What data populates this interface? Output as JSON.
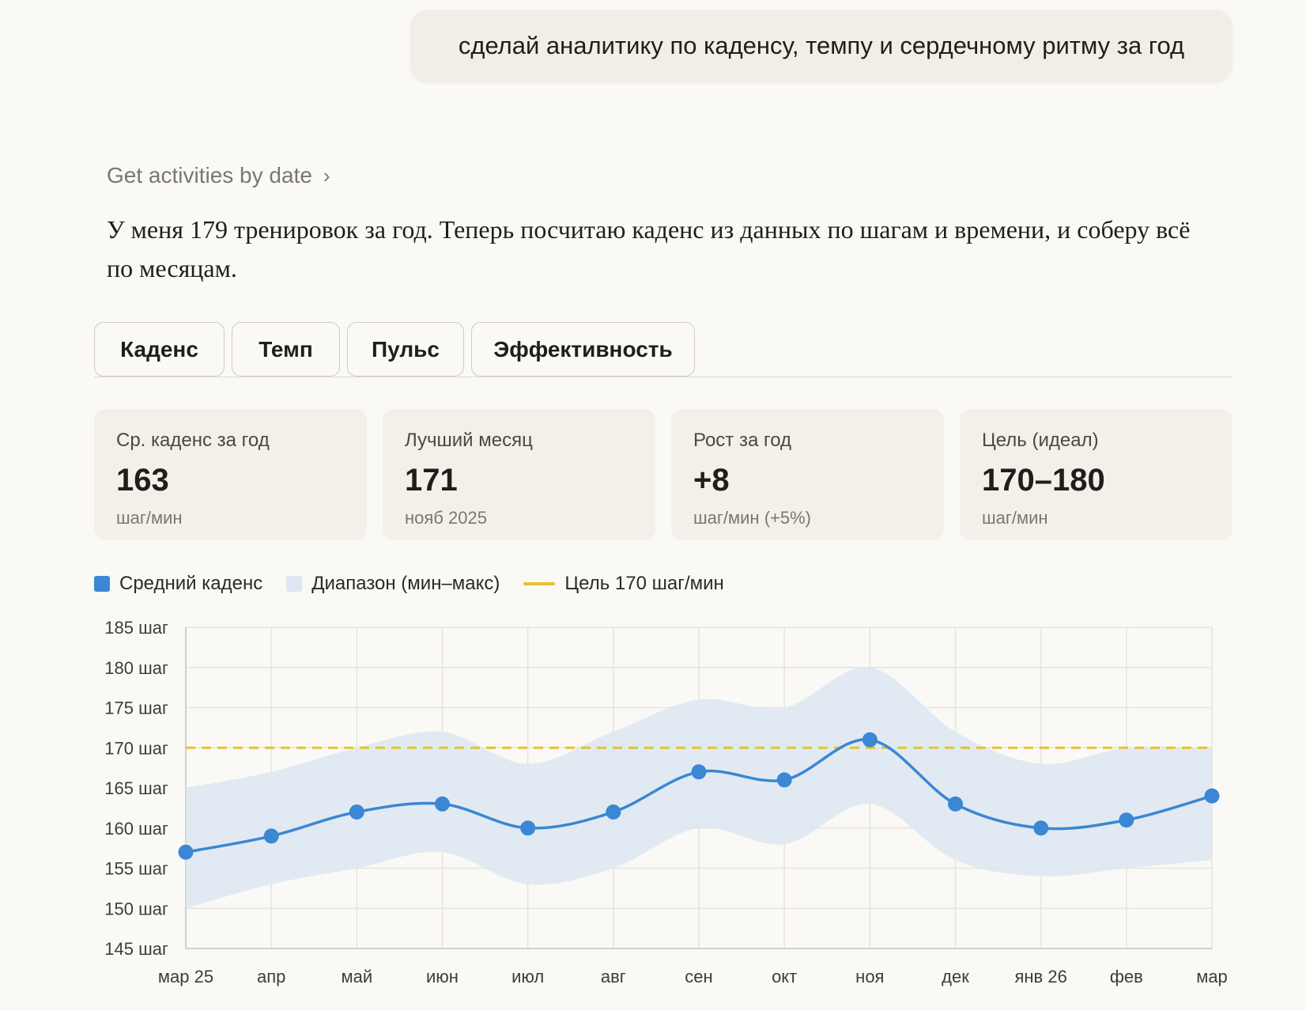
{
  "user_message": "сделай аналитику по каденсу, темпу и сердечному ритму за год",
  "tool_call": {
    "label": "Get activities by date",
    "chevron": "›"
  },
  "assistant_text": "У меня 179 тренировок за год. Теперь посчитаю каденс из данных по шагам и времени, и соберу всё по месяцам.",
  "tabs": [
    {
      "label": "Каденс"
    },
    {
      "label": "Темп"
    },
    {
      "label": "Пульс"
    },
    {
      "label": "Эффективность"
    }
  ],
  "stats": [
    {
      "label": "Ср. каденс за год",
      "value": "163",
      "sub": "шаг/мин"
    },
    {
      "label": "Лучший месяц",
      "value": "171",
      "sub": "нояб 2025"
    },
    {
      "label": "Рост за год",
      "value": "+8",
      "sub": "шаг/мин (+5%)"
    },
    {
      "label": "Цель (идеал)",
      "value": "170–180",
      "sub": "шаг/мин"
    }
  ],
  "legend": {
    "avg": "Средний каденс",
    "range": "Диапазон (мин–макс)",
    "goal": "Цель 170 шаг/мин"
  },
  "colors": {
    "line": "#3a87d4",
    "band": "#dce7f2",
    "goal": "#e8c22e"
  },
  "chart_data": {
    "type": "line",
    "categories": [
      "мар 25",
      "апр",
      "май",
      "июн",
      "июл",
      "авг",
      "сен",
      "окт",
      "ноя",
      "дек",
      "янв 26",
      "фев",
      "мар"
    ],
    "series": [
      {
        "name": "Средний каденс",
        "values": [
          157,
          159,
          162,
          163,
          160,
          162,
          167,
          166,
          171,
          163,
          160,
          161,
          164
        ]
      },
      {
        "name": "Диапазон (мин–макс)",
        "min": [
          150,
          153,
          155,
          157,
          153,
          155,
          160,
          158,
          163,
          156,
          154,
          155,
          156
        ],
        "max": [
          165,
          167,
          170,
          172,
          168,
          172,
          176,
          175,
          180,
          172,
          168,
          170,
          170
        ]
      }
    ],
    "goal": 170,
    "ylim": [
      145,
      185
    ],
    "yticks": [
      145,
      150,
      155,
      160,
      165,
      170,
      175,
      180,
      185
    ],
    "ytick_suffix": " шаг",
    "grid": true
  }
}
